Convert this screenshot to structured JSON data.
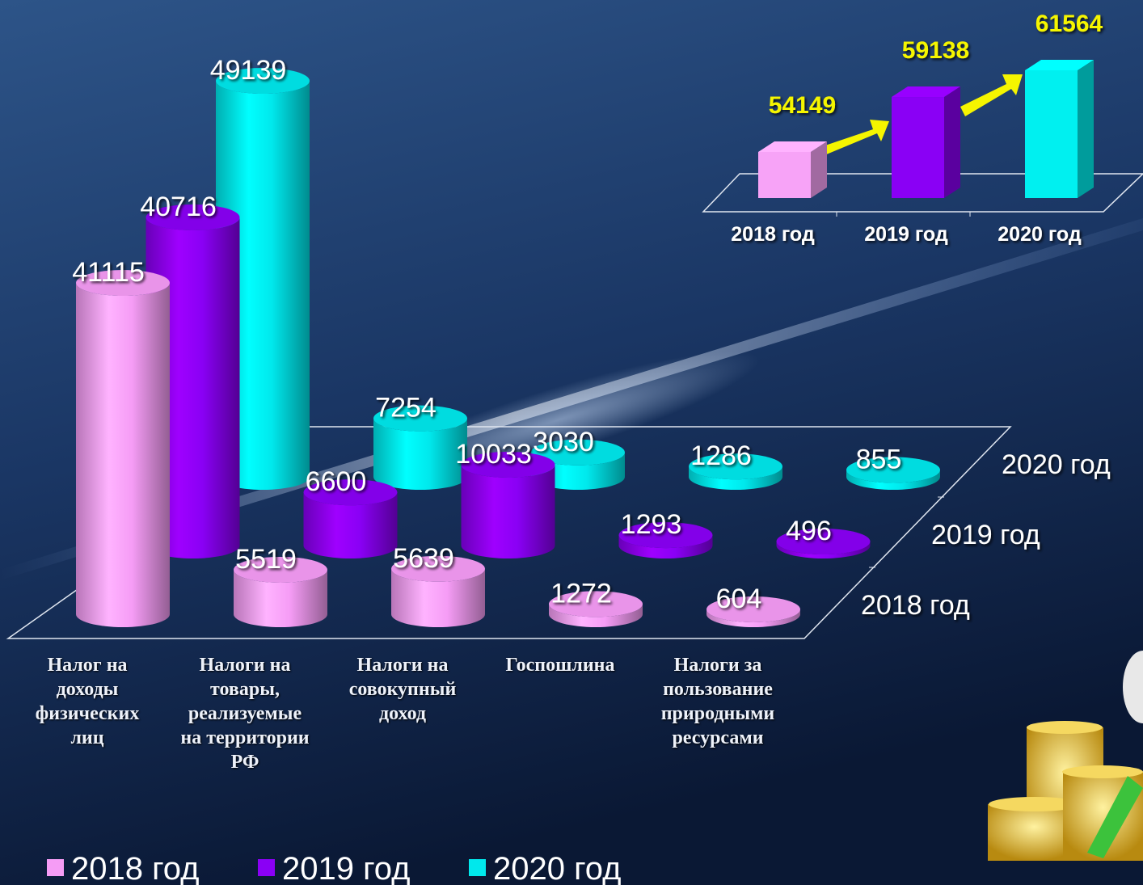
{
  "chart_data": [
    {
      "type": "cylinder",
      "categories": [
        "Налог на доходы физических лиц",
        "Налоги на товары, реализуемые на территории РФ",
        "Налоги на совокупный доход",
        "Госпошлина",
        "Налоги за пользование природными ресурсами"
      ],
      "series": [
        {
          "name": "2018 год",
          "color": "#f59cf5",
          "values": [
            41115,
            5519,
            5639,
            1272,
            604
          ]
        },
        {
          "name": "2019 год",
          "color": "#8a00f5",
          "values": [
            40716,
            6600,
            10033,
            1293,
            496
          ]
        },
        {
          "name": "2020 год",
          "color": "#00e8ec",
          "values": [
            49139,
            7254,
            3030,
            1286,
            855
          ]
        }
      ]
    },
    {
      "type": "bar",
      "categories": [
        "2018 год",
        "2019 год",
        "2020 год"
      ],
      "values": [
        54149,
        59138,
        61564
      ],
      "colors": [
        "#f7a3f7",
        "#8a00f5",
        "#00f0f0"
      ]
    }
  ]
}
